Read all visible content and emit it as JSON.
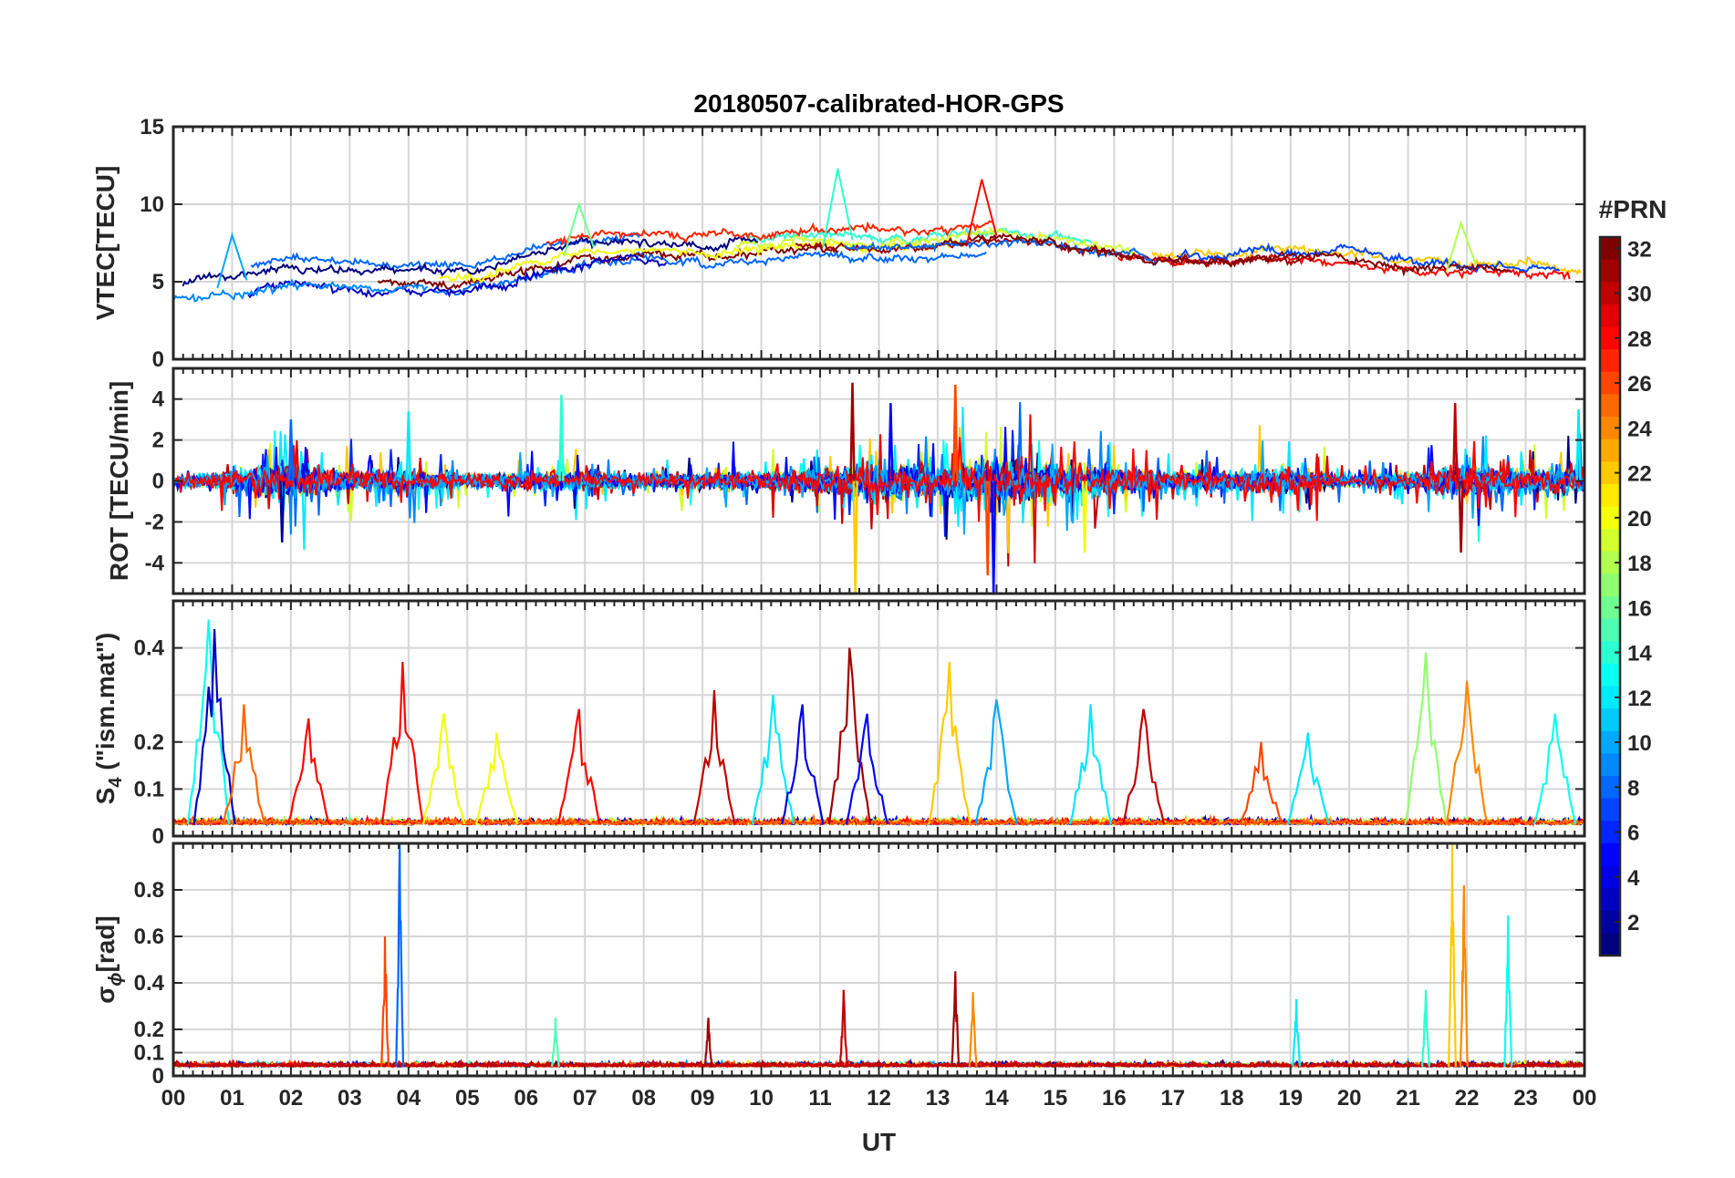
{
  "chart_data": {
    "type": "line",
    "title": "20180507-calibrated-HOR-GPS",
    "xlabel": "UT",
    "x_tick_labels": [
      "00",
      "01",
      "02",
      "03",
      "04",
      "05",
      "06",
      "07",
      "08",
      "09",
      "10",
      "11",
      "12",
      "13",
      "14",
      "15",
      "16",
      "17",
      "18",
      "19",
      "20",
      "21",
      "22",
      "23",
      "00"
    ],
    "x_range_hours": [
      0,
      24
    ],
    "grid": true,
    "series_note": "One line per GPS satellite PRN (1-32), color-coded by PRN using the colorbar.",
    "panels": [
      {
        "id": "vtec",
        "ylabel": "VTEC[TECU]",
        "ylim": [
          0,
          15
        ],
        "y_ticks": [
          0,
          5,
          10,
          15
        ],
        "y_tick_labels": [
          "0",
          "5",
          "10",
          "15"
        ],
        "gridlines": [
          0,
          5,
          10,
          15
        ],
        "baseline": {
          "hours": [
            0,
            1,
            2,
            3,
            4,
            5,
            6,
            7,
            8,
            9,
            10,
            11,
            12,
            13,
            14,
            15,
            16,
            17,
            18,
            19,
            20,
            21,
            22,
            23,
            24
          ],
          "values": [
            4.2,
            4.6,
            5.4,
            5.1,
            5.0,
            4.9,
            5.9,
            6.8,
            6.9,
            6.7,
            7.0,
            7.3,
            7.0,
            7.1,
            7.6,
            7.2,
            6.6,
            6.2,
            6.2,
            6.4,
            6.1,
            5.7,
            5.6,
            5.4,
            5.0
          ]
        },
        "peaks": [
          {
            "hour": 11.3,
            "value": 12.3,
            "prn": 14
          },
          {
            "hour": 13.75,
            "value": 11.6,
            "prn": 28
          },
          {
            "hour": 6.9,
            "value": 10.0,
            "prn": 16
          },
          {
            "hour": 1.0,
            "value": 8.0,
            "prn": 10
          },
          {
            "hour": 21.9,
            "value": 8.8,
            "prn": 18
          }
        ]
      },
      {
        "id": "rot",
        "ylabel": "ROT [TECU/min]",
        "ylim": [
          -5.5,
          5.5
        ],
        "y_ticks": [
          -4,
          -2,
          0,
          2,
          4
        ],
        "y_tick_labels": [
          "-4",
          "-2",
          "0",
          "2",
          "4"
        ],
        "gridlines": [
          -4,
          -2,
          0,
          2,
          4
        ],
        "activity": {
          "hours": [
            0,
            1,
            2,
            3,
            4,
            5,
            6,
            7,
            8,
            9,
            10,
            11,
            12,
            13,
            14,
            15,
            16,
            17,
            18,
            19,
            20,
            21,
            22,
            23,
            24
          ],
          "values": [
            0.3,
            0.8,
            1.6,
            0.8,
            0.9,
            0.5,
            0.7,
            0.8,
            0.5,
            0.7,
            0.7,
            1.0,
            1.6,
            1.2,
            2.2,
            1.4,
            1.2,
            0.7,
            0.8,
            1.1,
            0.4,
            0.6,
            1.4,
            0.9,
            1.0
          ]
        },
        "spikes": [
          {
            "hour": 11.55,
            "value": 4.8,
            "prn": 31
          },
          {
            "hour": 11.6,
            "value": -5.5,
            "prn": 22
          },
          {
            "hour": 13.3,
            "value": 4.7,
            "prn": 26
          },
          {
            "hour": 13.95,
            "value": -5.5,
            "prn": 5
          },
          {
            "hour": 13.85,
            "value": -4.6,
            "prn": 26
          },
          {
            "hour": 12.2,
            "value": 3.8,
            "prn": 5
          },
          {
            "hour": 21.8,
            "value": 3.8,
            "prn": 30
          },
          {
            "hour": 21.9,
            "value": -3.5,
            "prn": 31
          },
          {
            "hour": 6.6,
            "value": 4.2,
            "prn": 14
          },
          {
            "hour": 4.0,
            "value": 3.4,
            "prn": 12
          },
          {
            "hour": 2.0,
            "value": 3.0,
            "prn": 8
          },
          {
            "hour": 1.85,
            "value": -3.0,
            "prn": 2
          },
          {
            "hour": 23.9,
            "value": 3.5,
            "prn": 12
          },
          {
            "hour": 15.5,
            "value": -3.5,
            "prn": 20
          }
        ]
      },
      {
        "id": "s4",
        "ylabel": "S4 (\"ism.mat\")",
        "ylabel_main": "S",
        "ylabel_sub": "4",
        "ylabel_rest": " (\"ism.mat\")",
        "ylim": [
          0,
          0.5
        ],
        "y_ticks": [
          0,
          0.1,
          0.2,
          0.4
        ],
        "y_tick_labels": [
          "0",
          "0.1",
          "0.2",
          "0.4"
        ],
        "gridlines": [
          0.1,
          0.2,
          0.3,
          0.4
        ],
        "floor": 0.025,
        "peaks": [
          {
            "hour": 0.6,
            "value": 0.46,
            "prn": 13
          },
          {
            "hour": 0.7,
            "value": 0.44,
            "prn": 3
          },
          {
            "hour": 1.2,
            "value": 0.28,
            "prn": 25
          },
          {
            "hour": 2.3,
            "value": 0.25,
            "prn": 28
          },
          {
            "hour": 3.9,
            "value": 0.37,
            "prn": 28
          },
          {
            "hour": 4.6,
            "value": 0.26,
            "prn": 20
          },
          {
            "hour": 5.5,
            "value": 0.22,
            "prn": 20
          },
          {
            "hour": 6.9,
            "value": 0.27,
            "prn": 28
          },
          {
            "hour": 9.2,
            "value": 0.31,
            "prn": 30
          },
          {
            "hour": 10.2,
            "value": 0.3,
            "prn": 12
          },
          {
            "hour": 10.7,
            "value": 0.28,
            "prn": 4
          },
          {
            "hour": 11.5,
            "value": 0.4,
            "prn": 31
          },
          {
            "hour": 11.8,
            "value": 0.26,
            "prn": 5
          },
          {
            "hour": 13.2,
            "value": 0.37,
            "prn": 22
          },
          {
            "hour": 14.0,
            "value": 0.29,
            "prn": 10
          },
          {
            "hour": 15.6,
            "value": 0.28,
            "prn": 12
          },
          {
            "hour": 16.5,
            "value": 0.27,
            "prn": 30
          },
          {
            "hour": 18.5,
            "value": 0.2,
            "prn": 26
          },
          {
            "hour": 19.3,
            "value": 0.22,
            "prn": 12
          },
          {
            "hour": 21.3,
            "value": 0.39,
            "prn": 17
          },
          {
            "hour": 22.0,
            "value": 0.33,
            "prn": 24
          },
          {
            "hour": 23.5,
            "value": 0.26,
            "prn": 13
          }
        ]
      },
      {
        "id": "sigma_phi",
        "ylabel": "σϕ[rad]",
        "ylabel_main": "σ",
        "ylabel_sub": "ϕ",
        "ylabel_rest": "[rad]",
        "ylim": [
          0,
          1.0
        ],
        "y_ticks": [
          0,
          0.1,
          0.2,
          0.4,
          0.6,
          0.8
        ],
        "y_tick_labels": [
          "0",
          "0.1",
          "0.2",
          "0.4",
          "0.6",
          "0.8"
        ],
        "gridlines": [
          0.1,
          0.2,
          0.4,
          0.6,
          0.8
        ],
        "floor": 0.04,
        "peaks": [
          {
            "hour": 3.85,
            "value": 1.0,
            "prn": 8
          },
          {
            "hour": 3.6,
            "value": 0.6,
            "prn": 26
          },
          {
            "hour": 21.75,
            "value": 1.0,
            "prn": 22
          },
          {
            "hour": 21.95,
            "value": 0.82,
            "prn": 24
          },
          {
            "hour": 22.7,
            "value": 0.69,
            "prn": 13
          },
          {
            "hour": 13.3,
            "value": 0.45,
            "prn": 31
          },
          {
            "hour": 13.6,
            "value": 0.36,
            "prn": 24
          },
          {
            "hour": 11.4,
            "value": 0.37,
            "prn": 30
          },
          {
            "hour": 9.1,
            "value": 0.25,
            "prn": 31
          },
          {
            "hour": 6.5,
            "value": 0.25,
            "prn": 15
          },
          {
            "hour": 19.1,
            "value": 0.33,
            "prn": 12
          },
          {
            "hour": 21.3,
            "value": 0.37,
            "prn": 14
          }
        ]
      }
    ],
    "colorbar": {
      "title": "#PRN",
      "range": [
        1,
        32
      ],
      "tick_values": [
        2,
        4,
        6,
        8,
        10,
        12,
        14,
        16,
        18,
        20,
        22,
        24,
        26,
        28,
        30,
        32
      ],
      "tick_labels": [
        "2",
        "4",
        "6",
        "8",
        "10",
        "12",
        "14",
        "16",
        "18",
        "20",
        "22",
        "24",
        "26",
        "28",
        "30",
        "32"
      ],
      "colormap": "jet"
    }
  }
}
